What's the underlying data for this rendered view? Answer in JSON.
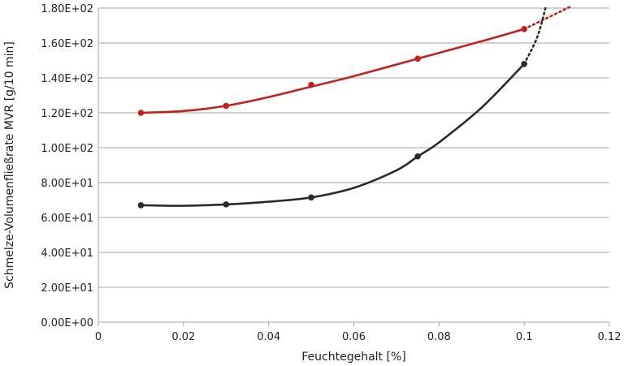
{
  "chart_data": {
    "type": "scatter",
    "xlabel": "Feuchtegehalt [%]",
    "ylabel": "Schmelze-Volumenfließrate MVR [g/10 min]",
    "xlim": [
      0,
      0.12
    ],
    "ylim": [
      0,
      180
    ],
    "x_ticks": [
      0,
      0.02,
      0.04,
      0.06,
      0.08,
      0.1,
      0.12
    ],
    "x_tick_labels": [
      "0",
      "0.02",
      "0.04",
      "0.06",
      "0.08",
      "0.1",
      "0.12"
    ],
    "y_ticks": [
      0,
      20,
      40,
      60,
      80,
      100,
      120,
      140,
      160,
      180
    ],
    "y_tick_labels": [
      "0.00E+00",
      "2.00E+01",
      "4.00E+01",
      "6.00E+01",
      "8.00E+01",
      "1.00E+02",
      "1.20E+02",
      "1.40E+02",
      "1.60E+02",
      "1.80E+02"
    ],
    "grid": "horizontal",
    "legend": "none",
    "series": [
      {
        "color": "#c0231e",
        "x": [
          0.01,
          0.03,
          0.05,
          0.075,
          0.1
        ],
        "y": [
          120,
          124,
          136,
          151,
          168
        ],
        "curve": [
          [
            0.01,
            120
          ],
          [
            0.02,
            121
          ],
          [
            0.03,
            124
          ],
          [
            0.04,
            129
          ],
          [
            0.05,
            135
          ],
          [
            0.06,
            141
          ],
          [
            0.075,
            151
          ],
          [
            0.09,
            161
          ],
          [
            0.1,
            168
          ]
        ],
        "extrapolation": [
          [
            0.1,
            168
          ],
          [
            0.111,
            181
          ]
        ]
      },
      {
        "color": "#2a2a2a",
        "x": [
          0.01,
          0.03,
          0.05,
          0.075,
          0.1
        ],
        "y": [
          67,
          67.5,
          71.5,
          95,
          148
        ],
        "curve": [
          [
            0.01,
            67
          ],
          [
            0.02,
            66.7
          ],
          [
            0.03,
            67.5
          ],
          [
            0.04,
            69
          ],
          [
            0.05,
            71.5
          ],
          [
            0.06,
            77
          ],
          [
            0.07,
            87
          ],
          [
            0.075,
            95
          ],
          [
            0.08,
            103
          ],
          [
            0.09,
            123
          ],
          [
            0.1,
            148
          ]
        ],
        "extrapolation": [
          [
            0.1,
            148
          ],
          [
            0.103,
            163
          ],
          [
            0.105,
            180
          ]
        ]
      }
    ]
  }
}
